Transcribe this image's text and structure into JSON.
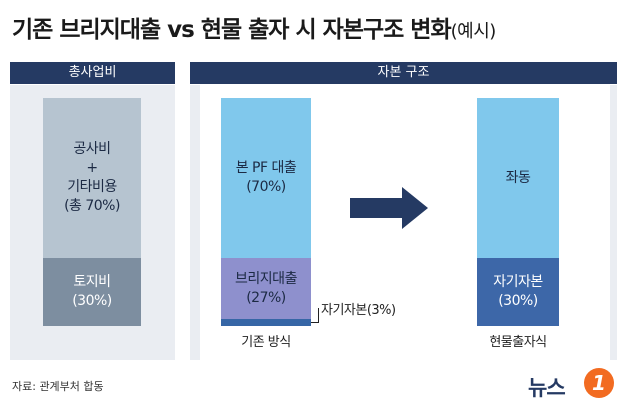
{
  "title": {
    "main": "기존 브리지대출 vs 현물 출자 시 자본구조 변화",
    "suffix": "(예시)"
  },
  "headers": {
    "left": "총사업비",
    "right": "자본 구조"
  },
  "left_bar": {
    "top": {
      "line1": "공사비",
      "line2": "+",
      "line3": "기타비용",
      "line4": "(총 70%)"
    },
    "bottom": {
      "line1": "토지비",
      "line2": "(30%)"
    }
  },
  "existing": {
    "pf": {
      "line1": "본 PF 대출",
      "line2": "(70%)"
    },
    "bridge": {
      "line1": "브리지대출",
      "line2": "(27%)"
    },
    "equity_callout": "자기자본(3%)",
    "caption": "기존 방식"
  },
  "inkind": {
    "top": {
      "line1": "좌동"
    },
    "equity": {
      "line1": "자기자본",
      "line2": "(30%)"
    },
    "caption": "현물출자식"
  },
  "source": "자료: 관계부처 합동",
  "logo": {
    "text": "뉴스",
    "mark": "1"
  },
  "colors": {
    "navy": "#253a63",
    "light_blue": "#80c8ec",
    "grey_light": "#b6c4d0",
    "grey_dark": "#7d8ea0",
    "lavender": "#8e90cd",
    "dark_blue": "#3666a6",
    "equity_blue": "#3d67a8",
    "orange": "#f26b21"
  }
}
